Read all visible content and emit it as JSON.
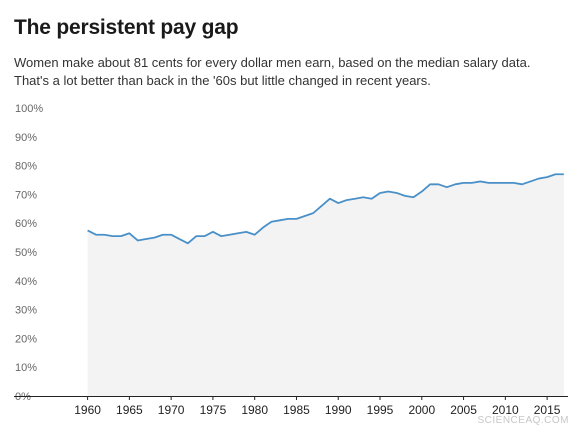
{
  "header": {
    "title": "The persistent pay gap",
    "subtitle_line1": "Women make about 81 cents for every dollar men earn, based on the median salary data.",
    "subtitle_line2": "That's a lot better than back in the '60s but little changed in recent years."
  },
  "watermark": "SCIENCEAQ.COM",
  "colors": {
    "line": "#4a90c8",
    "fill": "#f3f3f3",
    "grid": "#e4e4e4",
    "axis": "#222222",
    "tick_text": "#666666"
  },
  "chart_data": {
    "type": "area",
    "title": "The persistent pay gap",
    "xlabel": "",
    "ylabel": "",
    "xlim": [
      1955.5,
      2017.5
    ],
    "ylim": [
      0,
      100
    ],
    "y_ticks": [
      0,
      10,
      20,
      30,
      40,
      50,
      60,
      70,
      80,
      90,
      100
    ],
    "y_tick_labels": [
      "0%",
      "10%",
      "20%",
      "30%",
      "40%",
      "50%",
      "60%",
      "70%",
      "80%",
      "90%",
      "100%"
    ],
    "x_ticks": [
      1960,
      1965,
      1970,
      1975,
      1980,
      1985,
      1990,
      1995,
      2000,
      2005,
      2010,
      2015
    ],
    "x_tick_labels": [
      "1960",
      "1965",
      "1970",
      "1975",
      "1980",
      "1985",
      "1990",
      "1995",
      "2000",
      "2005",
      "2010",
      "2015"
    ],
    "grid": false,
    "series": [
      {
        "x": [
          1960,
          1961,
          1962,
          1963,
          1964,
          1965,
          1966,
          1967,
          1968,
          1969,
          1970,
          1971,
          1972,
          1973,
          1974,
          1975,
          1976,
          1977,
          1978,
          1979,
          1980,
          1981,
          1982,
          1983,
          1984,
          1985,
          1986,
          1987,
          1988,
          1989,
          1990,
          1991,
          1992,
          1993,
          1994,
          1995,
          1996,
          1997,
          1998,
          1999,
          2000,
          2001,
          2002,
          2003,
          2004,
          2005,
          2006,
          2007,
          2008,
          2009,
          2010,
          2011,
          2012,
          2013,
          2014,
          2015,
          2016,
          2017
        ],
        "values": [
          57.5,
          56,
          56,
          55.5,
          55.5,
          56.5,
          54,
          54.5,
          55,
          56,
          56,
          54.5,
          53,
          55.5,
          55.5,
          57,
          55.5,
          56,
          56.5,
          57,
          56,
          58.5,
          60.5,
          61,
          61.5,
          61.5,
          62.5,
          63.5,
          66,
          68.5,
          67,
          68,
          68.5,
          69,
          68.5,
          70.5,
          71,
          70.5,
          69.5,
          69,
          71,
          73.5,
          73.5,
          72.5,
          73.5,
          74,
          74,
          74.5,
          74,
          74,
          74,
          74,
          73.5,
          74.5,
          75.5,
          76,
          77,
          77
        ]
      }
    ]
  }
}
